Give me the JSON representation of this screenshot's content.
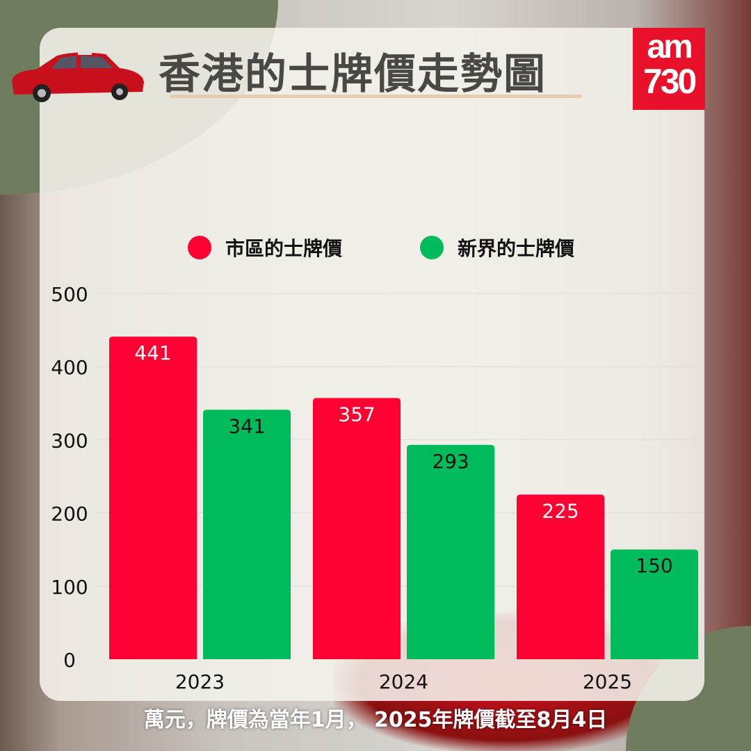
{
  "title": "香港的士牌價走勢圖",
  "logo": {
    "top": "am",
    "bottom": "730",
    "color": "#e8102a"
  },
  "footer": "萬元，牌價為當年1月， 2025年牌價截至8月4日",
  "chart_data": {
    "type": "bar",
    "categories": [
      "2023",
      "2024",
      "2025"
    ],
    "series": [
      {
        "name": "市區的士牌價",
        "color": "#ff0033",
        "values": [
          441,
          357,
          225
        ]
      },
      {
        "name": "新界的士牌價",
        "color": "#00bb5c",
        "values": [
          341,
          293,
          150
        ]
      }
    ],
    "ylim": [
      0,
      500
    ],
    "yticks": [
      "0",
      "100",
      "200",
      "300",
      "400",
      "500"
    ],
    "grid": true,
    "legend": "top-center",
    "data_labels": true
  }
}
